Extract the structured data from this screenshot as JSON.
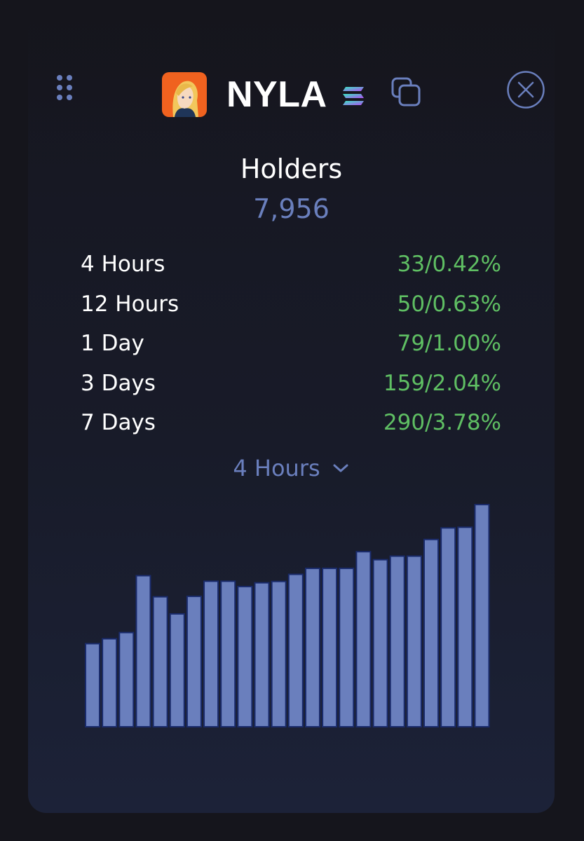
{
  "header": {
    "token_name": "NYLA",
    "icons": {
      "drag": "drag-handle-icon",
      "chain": "solana-icon",
      "copy": "copy-icon",
      "close": "close-icon"
    }
  },
  "holders": {
    "title": "Holders",
    "count": "7,956"
  },
  "stats": [
    {
      "label": "4 Hours",
      "value": "33/0.42%"
    },
    {
      "label": "12 Hours",
      "value": "50/0.63%"
    },
    {
      "label": "1 Day",
      "value": "79/1.00%"
    },
    {
      "label": "3 Days",
      "value": "159/2.04%"
    },
    {
      "label": "7 Days",
      "value": "290/3.78%"
    }
  ],
  "period_select": {
    "selected": "4 Hours"
  },
  "colors": {
    "background": "#15151c",
    "accent": "#6a7fbd",
    "positive": "#5fbf63",
    "bar_fill": "#6a7fbd",
    "bar_stroke": "#1a2b6b"
  },
  "chart_data": {
    "type": "bar",
    "values": [
      0.374,
      0.396,
      0.424,
      0.68,
      0.585,
      0.508,
      0.587,
      0.655,
      0.655,
      0.631,
      0.648,
      0.654,
      0.686,
      0.713,
      0.713,
      0.713,
      0.788,
      0.752,
      0.768,
      0.768,
      0.843,
      0.895,
      0.898,
      1.0
    ],
    "grid": false,
    "legend": "none"
  }
}
